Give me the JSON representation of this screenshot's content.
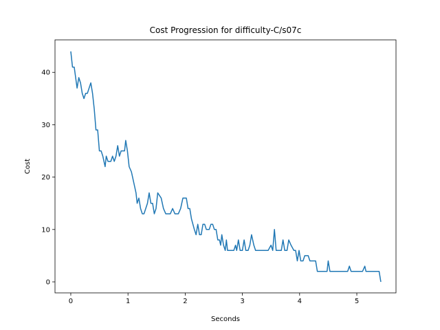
{
  "chart_data": {
    "type": "line",
    "title": "Cost Progression for difficulty-C/s07c",
    "xlabel": "Seconds",
    "ylabel": "Cost",
    "x": [
      0,
      0.03,
      0.06,
      0.11,
      0.14,
      0.17,
      0.2,
      0.23,
      0.26,
      0.29,
      0.32,
      0.35,
      0.38,
      0.41,
      0.44,
      0.47,
      0.5,
      0.53,
      0.56,
      0.6,
      0.62,
      0.65,
      0.7,
      0.73,
      0.76,
      0.79,
      0.82,
      0.85,
      0.88,
      0.94,
      0.96,
      0.99,
      1.02,
      1.06,
      1.1,
      1.14,
      1.16,
      1.19,
      1.22,
      1.25,
      1.28,
      1.31,
      1.34,
      1.37,
      1.4,
      1.43,
      1.46,
      1.49,
      1.52,
      1.58,
      1.62,
      1.66,
      1.74,
      1.78,
      1.82,
      1.88,
      1.92,
      1.96,
      2.02,
      2.05,
      2.08,
      2.11,
      2.16,
      2.19,
      2.22,
      2.25,
      2.28,
      2.31,
      2.34,
      2.37,
      2.42,
      2.45,
      2.48,
      2.51,
      2.54,
      2.57,
      2.6,
      2.62,
      2.64,
      2.67,
      2.7,
      2.72,
      2.74,
      2.85,
      2.88,
      2.9,
      2.93,
      2.96,
      3.0,
      3.03,
      3.06,
      3.1,
      3.13,
      3.16,
      3.2,
      3.23,
      3.45,
      3.5,
      3.53,
      3.56,
      3.59,
      3.68,
      3.71,
      3.74,
      3.78,
      3.81,
      3.85,
      3.9,
      3.93,
      3.96,
      3.99,
      4.02,
      4.06,
      4.09,
      4.15,
      4.18,
      4.28,
      4.31,
      4.48,
      4.5,
      4.53,
      4.84,
      4.87,
      4.9,
      5.1,
      5.14,
      5.16,
      5.39,
      5.42
    ],
    "series": [
      {
        "name": "Cost",
        "color": "#1f77b4",
        "values": [
          44,
          41,
          41,
          37,
          39,
          38,
          36,
          35,
          36,
          36,
          37,
          38,
          36,
          33,
          29,
          29,
          25,
          25,
          24,
          22,
          24,
          23,
          23,
          24,
          23,
          24,
          26,
          24,
          25,
          25,
          27,
          25,
          22,
          21,
          19,
          17,
          15,
          16,
          14,
          13,
          13,
          14,
          15,
          17,
          15,
          15,
          13,
          14,
          17,
          16,
          14,
          13,
          13,
          14,
          13,
          13,
          14,
          16,
          16,
          14,
          14,
          12,
          10,
          9,
          11,
          9,
          9,
          11,
          11,
          10,
          10,
          11,
          11,
          10,
          10,
          8,
          8,
          7,
          9,
          7,
          6,
          8,
          6,
          6,
          7,
          6,
          8,
          6,
          6,
          8,
          6,
          6,
          7,
          9,
          7,
          6,
          6,
          7,
          6,
          10,
          6,
          6,
          8,
          6,
          6,
          8,
          7,
          6,
          6,
          4,
          6,
          4,
          4,
          5,
          5,
          4,
          4,
          2,
          2,
          4,
          2,
          2,
          3,
          2,
          2,
          3,
          2,
          2,
          0
        ]
      }
    ],
    "xlim": [
      -0.276,
      5.685
    ],
    "ylim": [
      -2.1,
      46.2
    ],
    "xticks": [
      0,
      1,
      2,
      3,
      4,
      5
    ],
    "yticks": [
      0,
      10,
      20,
      30,
      40
    ]
  }
}
